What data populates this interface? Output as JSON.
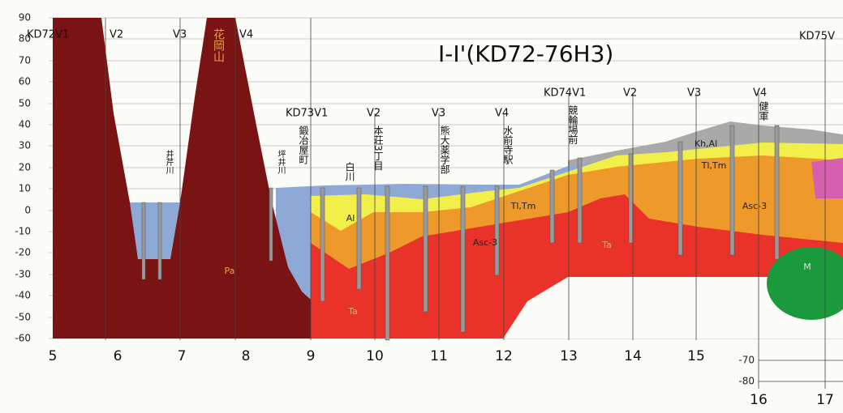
{
  "title": "I-I'(KD72-76H3)",
  "y_axis": {
    "ticks": [
      "90",
      "80",
      "70",
      "60",
      "50",
      "40",
      "30",
      "20",
      "10",
      "0",
      "-10",
      "-20",
      "-30",
      "-40",
      "-50",
      "-60"
    ]
  },
  "right_axis": {
    "ticks": [
      "-70",
      "-80"
    ]
  },
  "x_axis": {
    "ticks": [
      "5",
      "6",
      "7",
      "8",
      "9",
      "10",
      "11",
      "12",
      "13",
      "14",
      "15",
      "16",
      "17"
    ]
  },
  "sections": [
    {
      "labels": [
        "KD72V1",
        "V2",
        "V3",
        "V4"
      ]
    },
    {
      "labels": [
        "KD73V1",
        "V2",
        "V3",
        "V4"
      ]
    },
    {
      "labels": [
        "KD74V1",
        "V2",
        "V3",
        "V4"
      ]
    },
    {
      "labels": [
        "KD75V"
      ]
    }
  ],
  "layers": {
    "pa": "Pa",
    "al": "Al",
    "ta_left": "Ta",
    "asc_left": "Asc-3",
    "tltm_left": "Tl,Tm",
    "ta_right": "Ta",
    "tltm_right": "Tl,Tm",
    "asc_right": "Asc-3",
    "m": "M",
    "khal": "Kh,Al",
    "mountain": "花岡山"
  },
  "places": [
    "井芹川",
    "坪井川",
    "鍛冶屋町",
    "白川",
    "本荘3丁目",
    "熊大薬学部",
    "水前寺駅",
    "競輪場前",
    "健軍"
  ]
}
